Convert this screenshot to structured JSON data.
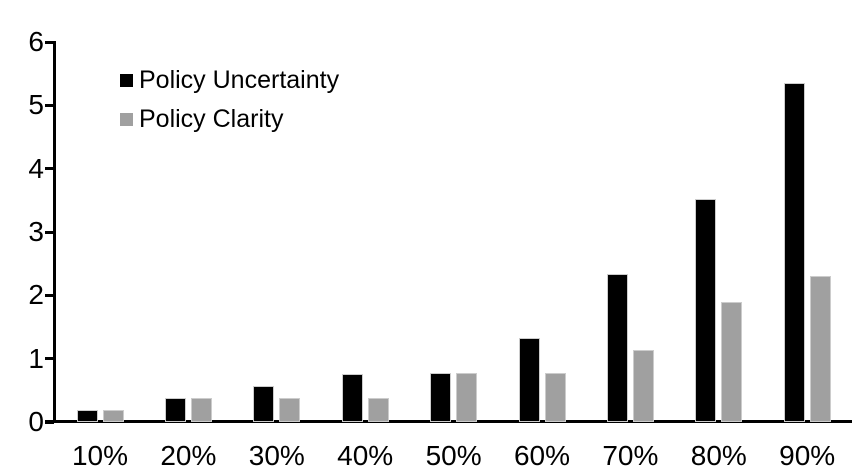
{
  "chart_data": {
    "type": "bar",
    "title": "",
    "categories": [
      "10%",
      "20%",
      "30%",
      "40%",
      "50%",
      "60%",
      "70%",
      "80%",
      "90%"
    ],
    "series": [
      {
        "name": "Policy Uncertainty",
        "color": "#000000",
        "values": [
          0.19,
          0.38,
          0.57,
          0.76,
          0.78,
          1.33,
          2.33,
          3.52,
          5.35
        ]
      },
      {
        "name": "Policy Clarity",
        "color": "#a0a0a0",
        "values": [
          0.19,
          0.38,
          0.38,
          0.38,
          0.77,
          0.77,
          1.14,
          1.9,
          2.3
        ]
      }
    ],
    "xlabel": "",
    "ylabel": "",
    "ylim": [
      0,
      6
    ],
    "yticks": [
      0,
      1,
      2,
      3,
      4,
      5,
      6
    ],
    "grid": false,
    "legend_position": "top-left",
    "background_color": "#ffffff",
    "bar_border_color": "#cccccc"
  }
}
